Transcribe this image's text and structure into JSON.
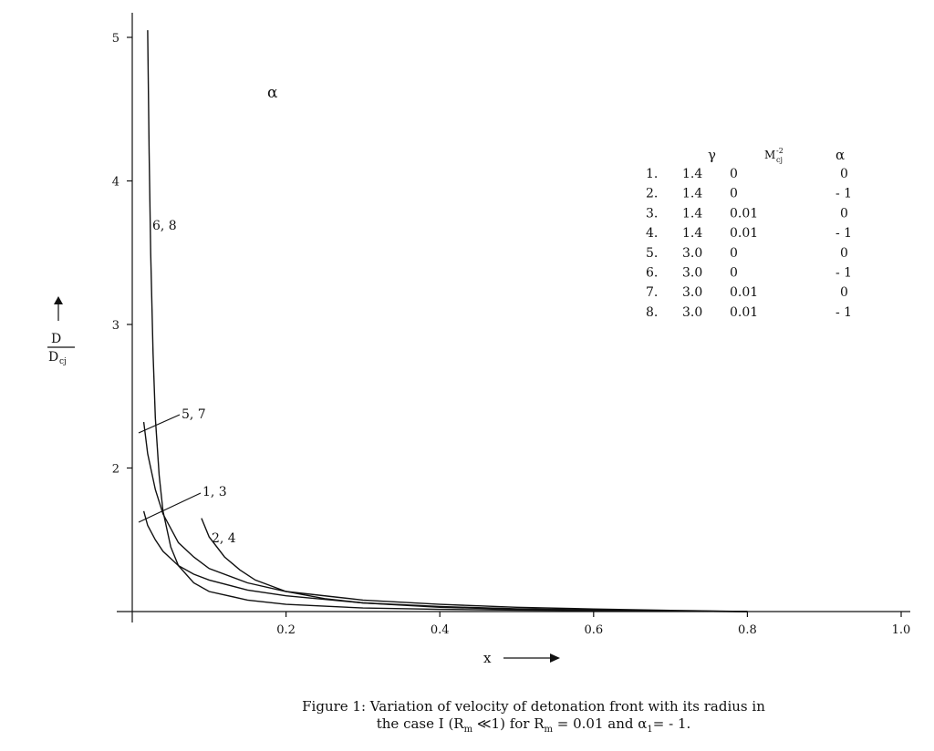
{
  "chart_data": {
    "type": "line",
    "title": "",
    "xlabel": "x",
    "ylabel_num": "D",
    "ylabel_den": "D",
    "ylabel_den_sub": "cj",
    "xlim": [
      0,
      1.0
    ],
    "ylim": [
      1,
      5
    ],
    "x_ticks": [
      "0.2",
      "0.4",
      "0.6",
      "0.8",
      "1.0"
    ],
    "x_tick_values": [
      0.2,
      0.4,
      0.6,
      0.8,
      1.0
    ],
    "y_ticks": [
      "2",
      "3",
      "4",
      "5"
    ],
    "y_tick_values": [
      2,
      3,
      4,
      5
    ],
    "grid": false,
    "annotation_alpha": "α",
    "series": [
      {
        "name": "6, 8",
        "x": [
          0.02,
          0.022,
          0.024,
          0.027,
          0.03,
          0.035,
          0.04,
          0.05,
          0.06,
          0.08,
          0.1,
          0.15,
          0.2,
          0.3,
          0.4,
          0.5,
          0.6,
          0.7,
          0.8
        ],
        "values": [
          5.05,
          4.2,
          3.5,
          2.8,
          2.35,
          1.95,
          1.7,
          1.45,
          1.32,
          1.2,
          1.14,
          1.08,
          1.05,
          1.025,
          1.015,
          1.01,
          1.006,
          1.003,
          1.0
        ]
      },
      {
        "name": "5, 7",
        "x": [
          0.015,
          0.02,
          0.03,
          0.04,
          0.06,
          0.08,
          0.1,
          0.15,
          0.2,
          0.3,
          0.4,
          0.5,
          0.6,
          0.7,
          0.8
        ],
        "values": [
          2.32,
          2.1,
          1.85,
          1.68,
          1.48,
          1.38,
          1.3,
          1.2,
          1.14,
          1.08,
          1.05,
          1.03,
          1.018,
          1.008,
          1.0
        ]
      },
      {
        "name": "1, 3",
        "x": [
          0.015,
          0.02,
          0.03,
          0.04,
          0.06,
          0.08,
          0.1,
          0.15,
          0.2,
          0.3,
          0.4,
          0.5,
          0.6,
          0.7,
          0.8
        ],
        "values": [
          1.7,
          1.6,
          1.5,
          1.42,
          1.32,
          1.26,
          1.22,
          1.15,
          1.11,
          1.06,
          1.035,
          1.02,
          1.012,
          1.005,
          1.0
        ]
      },
      {
        "name": "2, 4",
        "x": [
          0.09,
          0.1,
          0.12,
          0.14,
          0.16,
          0.2,
          0.25,
          0.3,
          0.4,
          0.5,
          0.6,
          0.7,
          0.8
        ],
        "values": [
          1.65,
          1.52,
          1.38,
          1.29,
          1.22,
          1.14,
          1.09,
          1.06,
          1.03,
          1.016,
          1.008,
          1.003,
          1.0
        ]
      }
    ],
    "legend": {
      "headers": [
        "γ",
        "M",
        "-2",
        "cj",
        "α"
      ],
      "rows": [
        [
          "1.",
          "1.4",
          "0",
          "0"
        ],
        [
          "2.",
          "1.4",
          "0",
          "- 1"
        ],
        [
          "3.",
          "1.4",
          "0.01",
          "0"
        ],
        [
          "4.",
          "1.4",
          "0.01",
          "- 1"
        ],
        [
          "5.",
          "3.0",
          "0",
          "0"
        ],
        [
          "6.",
          "3.0",
          "0",
          "- 1"
        ],
        [
          "7.",
          "3.0",
          "0.01",
          "0"
        ],
        [
          "8.",
          "3.0",
          "0.01",
          "- 1"
        ]
      ]
    }
  },
  "caption": {
    "line1": "Figure 1: Variation of velocity of detonation front with its radius in",
    "line2": "the case I (Rm ≪1) for Rm = 0.01 and α1= - 1."
  }
}
